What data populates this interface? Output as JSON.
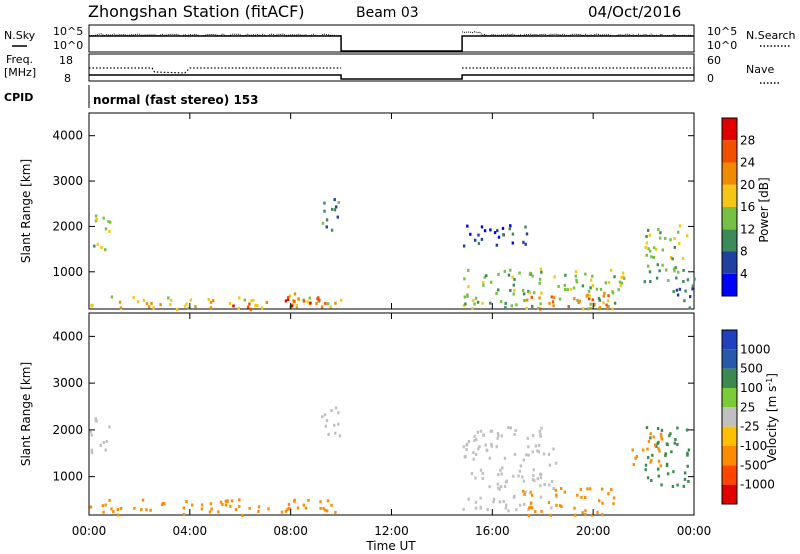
{
  "header": {
    "title": "Zhongshan Station (fitACF)",
    "beam": "Beam 03",
    "date": "04/Oct/2016"
  },
  "top_panel": {
    "left_label": "N.Sky",
    "left_ticks": [
      "10^5",
      "10^0"
    ],
    "right_label": "N.Search",
    "right_ticks": [
      "10^5",
      "10^0"
    ]
  },
  "freq_panel": {
    "left_label_line1": "Freq.",
    "left_label_line2": "[MHz]",
    "left_ticks": [
      "18",
      "8"
    ],
    "right_label": "Nave",
    "right_ticks": [
      "60",
      "0"
    ]
  },
  "cpid": {
    "label": "CPID",
    "mode": "normal (fast stereo) 153"
  },
  "colors": {
    "power": [
      "#0000ff",
      "#2040a0",
      "#3b8a5a",
      "#76c043",
      "#f5c518",
      "#f08a00",
      "#f05000",
      "#e00000"
    ],
    "velocity": [
      "#e00000",
      "#ff4500",
      "#ff8c00",
      "#ffc000",
      "#c0c0c0",
      "#7ccc3a",
      "#3a8a50",
      "#2858a8",
      "#2040c0"
    ]
  },
  "chart_data": [
    {
      "type": "heatmap",
      "title": "",
      "ylabel": "Slant Range [km]",
      "xlabel": "",
      "x_ticks": [
        "00:00",
        "04:00",
        "08:00",
        "12:00",
        "16:00",
        "20:00",
        "00:00"
      ],
      "y_ticks": [
        1000,
        2000,
        3000,
        4000
      ],
      "xlim_hours": [
        0,
        24
      ],
      "ylim_km": [
        180,
        4500
      ],
      "colorbar_label": "Power [dB]",
      "colorbar_ticks": [
        4,
        8,
        12,
        16,
        20,
        24,
        28
      ],
      "colorbar_range": [
        0,
        32
      ],
      "echo_regions": [
        {
          "t_start": 0.0,
          "t_end": 10.0,
          "r_start": 200,
          "r_end": 500,
          "value": 18
        },
        {
          "t_start": 7.2,
          "t_end": 9.8,
          "r_start": 250,
          "r_end": 550,
          "value": 26
        },
        {
          "t_start": 5.2,
          "t_end": 6.4,
          "r_start": 200,
          "r_end": 400,
          "value": 28
        },
        {
          "t_start": 0.0,
          "t_end": 0.8,
          "r_start": 1500,
          "r_end": 2300,
          "value": 14
        },
        {
          "t_start": 9.2,
          "t_end": 10.0,
          "r_start": 1900,
          "r_end": 2700,
          "value": 10
        },
        {
          "t_start": 14.8,
          "t_end": 21.2,
          "r_start": 200,
          "r_end": 1100,
          "value": 14
        },
        {
          "t_start": 17.0,
          "t_end": 20.8,
          "r_start": 200,
          "r_end": 600,
          "value": 22
        },
        {
          "t_start": 14.8,
          "t_end": 17.5,
          "r_start": 1600,
          "r_end": 2100,
          "value": 6
        },
        {
          "t_start": 22.0,
          "t_end": 23.8,
          "r_start": 800,
          "r_end": 2100,
          "value": 14
        },
        {
          "t_start": 23.0,
          "t_end": 24.0,
          "r_start": 200,
          "r_end": 900,
          "value": 8
        }
      ]
    },
    {
      "type": "heatmap",
      "title": "",
      "ylabel": "Slant Range [km]",
      "xlabel": "Time UT",
      "x_ticks": [
        "00:00",
        "04:00",
        "08:00",
        "12:00",
        "16:00",
        "20:00",
        "00:00"
      ],
      "y_ticks": [
        1000,
        2000,
        3000,
        4000
      ],
      "xlim_hours": [
        0,
        24
      ],
      "ylim_km": [
        180,
        4500
      ],
      "colorbar_label": "Velocity [m s^-1]",
      "colorbar_ticks": [
        "1000",
        "500",
        "100",
        "25",
        "-25",
        "-100",
        "-500",
        "-1000"
      ],
      "echo_regions": [
        {
          "t_start": 0.0,
          "t_end": 10.0,
          "r_start": 200,
          "r_end": 550,
          "value": -150
        },
        {
          "t_start": 0.0,
          "t_end": 0.8,
          "r_start": 1500,
          "r_end": 2300,
          "value": 0
        },
        {
          "t_start": 9.2,
          "t_end": 10.0,
          "r_start": 1900,
          "r_end": 2700,
          "value": 0
        },
        {
          "t_start": 14.8,
          "t_end": 18.5,
          "r_start": 300,
          "r_end": 2100,
          "value": 0
        },
        {
          "t_start": 17.0,
          "t_end": 20.8,
          "r_start": 200,
          "r_end": 800,
          "value": -150
        },
        {
          "t_start": 22.0,
          "t_end": 23.8,
          "r_start": 800,
          "r_end": 2100,
          "value": 150
        },
        {
          "t_start": 21.5,
          "t_end": 22.8,
          "r_start": 1200,
          "r_end": 2000,
          "value": -300
        }
      ]
    }
  ]
}
